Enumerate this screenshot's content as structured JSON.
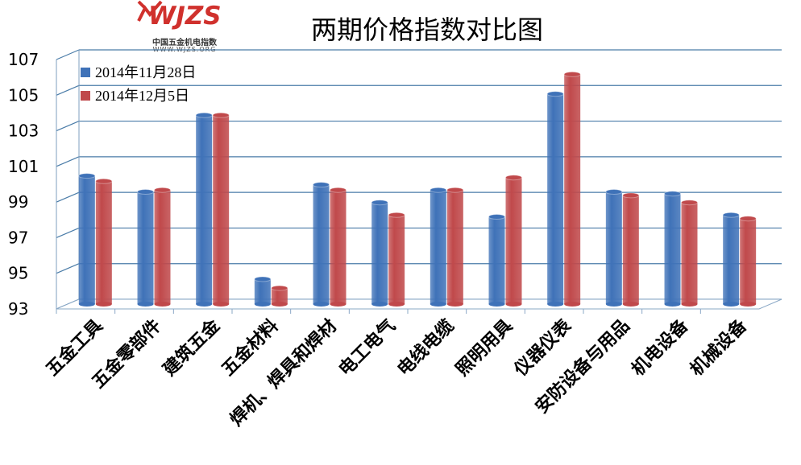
{
  "header": {
    "logo_mark": "WJZS",
    "logo_cn": "中国五金机电指数",
    "logo_url": "WWW.WJZS.ORG"
  },
  "chart_data": {
    "type": "bar",
    "title": "两期价格指数对比图",
    "categories": [
      "五金工具",
      "五金零部件",
      "建筑五金",
      "五金材料",
      "焊机、焊具和焊材",
      "电工电气",
      "电线电缆",
      "照明用具",
      "仪器仪表",
      "安防设备与用品",
      "机电设备",
      "机械设备"
    ],
    "series": [
      {
        "name": "2014年11月28日",
        "color": "#3f72b8",
        "values": [
          100.2,
          99.3,
          103.6,
          94.4,
          99.7,
          98.7,
          99.4,
          97.9,
          104.8,
          99.3,
          99.2,
          98.0
        ]
      },
      {
        "name": "2014年12月5日",
        "color": "#c0494b",
        "values": [
          99.9,
          99.4,
          103.6,
          93.9,
          99.4,
          98.0,
          99.4,
          100.1,
          105.9,
          99.1,
          98.7,
          97.8
        ]
      }
    ],
    "yticks": [
      93,
      95,
      97,
      99,
      101,
      103,
      105,
      107
    ],
    "ylim": [
      93,
      107
    ],
    "grid": true,
    "legend_position": "top-left"
  }
}
